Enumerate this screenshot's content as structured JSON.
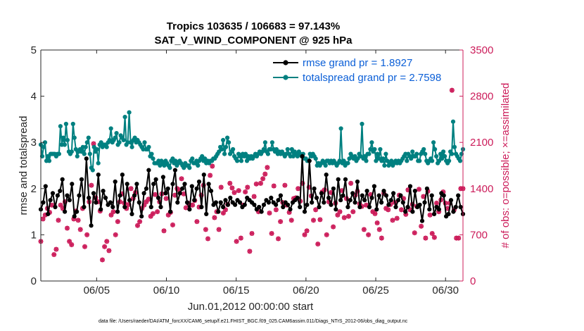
{
  "chart_data": {
    "type": "line",
    "title": "Tropics 103635 / 106683 = 97.143%",
    "subtitle": "SAT_V_WIND_COMPONENT @ 925 hPa",
    "xlabel": "Jun.01,2012 00:00:00 start",
    "ylabel": "rmse and totalspread",
    "y2label": "# of obs: o=possible; ×=assimilated",
    "footer": "data file: /Users/raeder/DAI/ATM_forcXX/CAM6_setup/f.e21.FHIST_BGC.f09_025.CAM6assim.011/Diags_NTrS_2012-06/obs_diag_output.nc",
    "xlim": [
      1,
      31.25
    ],
    "ylim": [
      0,
      5
    ],
    "y2lim": [
      0,
      3500
    ],
    "x_ticks": [
      5,
      10,
      15,
      20,
      25,
      30
    ],
    "x_tick_labels": [
      "06/05",
      "06/10",
      "06/15",
      "06/20",
      "06/25",
      "06/30"
    ],
    "y_ticks": [
      "0",
      "1",
      "2",
      "3",
      "4",
      "5"
    ],
    "y2_ticks": [
      "0",
      "700",
      "1400",
      "2100",
      "2800",
      "3500"
    ],
    "colors": {
      "rmse": "#000000",
      "spread": "#008080",
      "obs": "#cc1c5a"
    },
    "series": [
      {
        "name": "rmse grand pr = 1.8927",
        "key": "rmse",
        "values": [
          1.55,
          1.7,
          2.05,
          1.45,
          1.75,
          1.9,
          1.6,
          1.85,
          1.95,
          2.2,
          1.5,
          1.85,
          1.75,
          2.1,
          1.4,
          1.5,
          1.85,
          2.2,
          1.6,
          2.65,
          1.8,
          1.2,
          1.9,
          1.7,
          2.3,
          1.55,
          1.95,
          1.8,
          1.65,
          1.7,
          1.6,
          2.15,
          1.5,
          1.85,
          2.3,
          1.6,
          2.1,
          1.75,
          1.45,
          1.85,
          2.1,
          1.7,
          1.4,
          1.9,
          2.0,
          2.4,
          1.6,
          2.1,
          2.2,
          1.8,
          1.6,
          2.25,
          1.9,
          2.0,
          1.5,
          2.1,
          2.4,
          1.7,
          1.9,
          2.0,
          2.1,
          1.7,
          1.55,
          2.05,
          1.75,
          2.0,
          2.15,
          1.6,
          2.3,
          1.45,
          2.1,
          1.95,
          1.65,
          1.7,
          1.5,
          1.7,
          1.6,
          1.75,
          1.65,
          1.8,
          1.7,
          1.65,
          1.75,
          1.7,
          1.6,
          1.65,
          1.8,
          1.75,
          1.7,
          1.65,
          1.55,
          1.6,
          1.5,
          1.65,
          1.75,
          1.7,
          1.8,
          1.7,
          1.65,
          1.75,
          1.85,
          1.6,
          1.7,
          1.65,
          1.55,
          1.7,
          1.75,
          1.8,
          1.6,
          2.7,
          1.5,
          1.65,
          2.6,
          1.7,
          2.0,
          1.8,
          1.6,
          1.9,
          1.7,
          2.3,
          1.8,
          1.65,
          2.0,
          1.55,
          2.2,
          1.75,
          1.85,
          2.2,
          1.6,
          1.75,
          1.9,
          1.7,
          2.15,
          1.6,
          1.85,
          1.75,
          1.95,
          1.6,
          1.8,
          2.05,
          1.55,
          1.85,
          1.7,
          1.95,
          1.85,
          1.65,
          1.75,
          1.9,
          1.6,
          1.75,
          1.85,
          1.7,
          1.5,
          1.6,
          2.05,
          1.5,
          1.95,
          1.6,
          1.65,
          1.3,
          1.7,
          2.0,
          1.55,
          1.85,
          1.45,
          1.6,
          1.55,
          1.9,
          1.85,
          1.4,
          1.45,
          1.75,
          1.5,
          1.6,
          1.85,
          1.6,
          1.45
        ]
      },
      {
        "name": "totalspread grand pr = 2.7598",
        "key": "spread",
        "values": [
          2.95,
          2.7,
          2.9,
          3.0,
          2.6,
          2.7,
          2.6,
          2.75,
          2.75,
          2.75,
          2.75,
          2.7,
          2.75,
          2.75,
          3.35,
          2.95,
          3.1,
          2.95,
          3.4,
          3.05,
          2.8,
          2.75,
          2.8,
          3.4,
          3.1,
          2.85,
          2.7,
          2.8,
          2.85,
          2.8,
          2.9,
          2.75,
          2.9,
          3.0,
          3.1,
          2.75,
          2.45,
          2.4,
          2.9,
          2.8,
          2.85,
          2.55,
          2.95,
          3.0,
          2.9,
          2.95,
          2.95,
          2.9,
          3.0,
          3.05,
          3.3,
          3.0,
          3.05,
          3.1,
          3.2,
          2.95,
          3.0,
          3.15,
          3.1,
          3.05,
          3.55,
          2.95,
          3.0,
          3.65,
          3.0,
          2.9,
          3.05,
          3.1,
          3.0,
          3.05,
          3.0,
          2.95,
          2.9,
          2.85,
          3.0,
          2.85,
          2.85,
          2.9,
          2.7,
          2.75,
          2.65,
          2.55,
          2.55,
          2.55,
          2.6,
          2.5,
          2.6,
          2.55,
          2.5,
          2.6,
          2.55,
          2.5,
          2.45,
          2.6,
          2.65,
          2.55,
          2.6,
          2.5,
          2.55,
          2.6,
          2.55,
          2.5,
          2.45,
          2.55,
          2.5,
          2.5,
          2.45,
          2.6,
          2.65,
          2.55,
          2.55,
          2.6,
          2.5,
          2.6,
          2.65,
          2.7,
          2.6,
          2.65,
          2.55,
          2.6,
          2.55,
          2.6,
          2.6,
          2.65,
          2.65,
          2.7,
          2.75,
          2.8,
          2.9,
          2.85,
          3.05,
          2.75,
          2.9,
          3.1,
          3.0,
          2.75,
          2.8,
          2.85,
          2.7,
          2.65,
          2.6,
          2.75,
          2.7,
          2.6,
          2.75,
          2.7,
          2.75,
          2.6,
          2.7,
          2.65,
          2.7,
          2.65,
          2.7,
          2.75,
          2.7,
          2.75,
          2.8,
          2.75,
          2.8,
          2.85,
          3.0,
          2.8,
          2.75,
          2.85,
          2.85,
          3.0,
          2.85,
          2.8,
          2.85,
          2.75,
          2.8,
          2.75,
          2.8,
          2.75,
          2.7,
          2.75,
          2.85,
          2.75,
          2.7,
          2.85,
          2.7,
          2.8,
          2.75,
          2.7,
          2.8,
          2.75,
          2.7,
          2.75,
          2.65,
          2.65,
          2.6,
          2.6,
          2.75,
          2.7,
          2.75,
          2.7,
          2.65,
          2.5,
          2.55,
          2.5,
          2.55,
          2.6,
          2.55,
          2.5,
          2.6,
          2.6,
          2.55,
          2.6,
          2.55,
          2.6,
          2.55,
          2.5,
          2.55,
          2.6,
          3.3,
          2.55,
          2.6,
          2.5,
          2.55,
          2.55,
          2.65,
          2.75,
          2.7,
          2.65,
          2.7,
          2.6,
          2.65,
          2.75,
          2.7,
          3.4,
          2.65,
          2.7,
          2.6,
          2.75,
          2.75,
          2.85,
          3.0,
          2.8,
          2.85,
          2.6,
          2.75,
          2.65,
          2.85,
          2.6,
          2.65,
          2.5,
          2.75,
          2.6,
          2.5,
          2.55,
          2.6,
          2.5,
          2.55,
          2.6,
          2.55,
          2.6,
          2.55,
          2.6,
          2.65,
          2.7,
          2.75,
          2.6,
          2.75,
          2.7,
          2.65,
          2.8,
          2.7,
          2.7,
          2.75,
          2.6,
          2.6,
          2.75,
          2.8,
          2.85,
          2.75,
          2.6,
          2.55,
          2.6,
          2.65,
          2.6,
          3.0,
          2.85,
          2.7,
          2.55,
          2.6,
          2.75,
          2.65,
          2.8,
          2.7,
          2.6,
          2.55,
          2.6,
          2.8,
          2.75,
          3.45,
          2.9,
          2.75,
          2.7,
          2.65,
          2.6,
          2.75,
          2.85
        ]
      },
      {
        "name": "# of obs possible",
        "key": "possible",
        "axis": "right",
        "values": [
          600,
          940,
          1000,
          1100,
          1040,
          1150,
          400,
          480,
          920,
          1150,
          1100,
          1200,
          800,
          600,
          550,
          940,
          1060,
          920,
          780,
          1100,
          520,
          700,
          1200,
          1450,
          2080,
          1260,
          1200,
          1060,
          320,
          520,
          600,
          460,
          1000,
          1050,
          700,
          900,
          1200,
          1320,
          1180,
          1100,
          1160,
          1400,
          1250,
          1340,
          840,
          900,
          1100,
          1150,
          1200,
          1240,
          980,
          1020,
          1310,
          1050,
          1200,
          1320,
          760,
          1250,
          1000,
          1040,
          850,
          1300,
          1400,
          1380,
          1550,
          1320,
          1110,
          1180,
          1150,
          1150,
          1220,
          900,
          1120,
          1300,
          1450,
          780,
          640,
          1600,
          1740,
          960,
          1050,
          780,
          1420,
          1030,
          1080,
          1160,
          1480,
          1410,
          1340,
          600,
          1370,
          650,
          1150,
          1350,
          1420,
          450,
          720,
          1280,
          1470,
          1050,
          1480,
          1550,
          1620,
          1720,
          1030,
          720,
          1440,
          1080,
          640,
          900,
          1190,
          1450,
          1150,
          1040,
          920,
          1250,
          1260,
          1400,
          1210,
          1480,
          700,
          760,
          1420,
          1290,
          920,
          1080,
          560,
          930,
          1350,
          1380,
          700,
          1200,
          1340,
          820,
          1180,
          1000,
          1050,
          1370,
          960,
          1250,
          980,
          1480,
          1050,
          1300,
          1360,
          1170,
          1130,
          780,
          1150,
          700,
          1310,
          1050,
          1020,
          880,
          780,
          650,
          1330,
          1100,
          1080,
          1160,
          920,
          1190,
          950,
          1300,
          1080,
          1250,
          1010,
          1380,
          1080,
          1160,
          730,
          1130,
          1390,
          830,
          1280,
          650,
          1360,
          1000,
          720,
          660,
          1180,
          1050,
          1230,
          1350,
          1180,
          1100,
          1180,
          2890,
          1080,
          650,
          650,
          1400,
          1400
        ]
      }
    ]
  }
}
